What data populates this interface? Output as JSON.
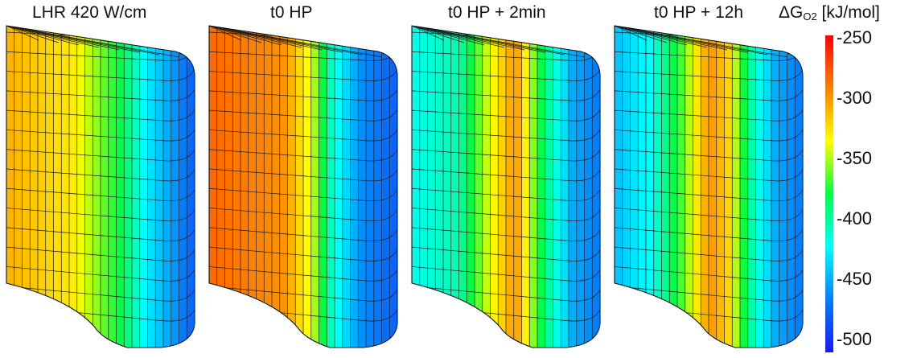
{
  "panels": [
    {
      "title": "LHR 420 W/cm",
      "profile": [
        [
          0,
          -310
        ],
        [
          0.35,
          -330
        ],
        [
          0.6,
          -380
        ],
        [
          0.75,
          -430
        ],
        [
          1,
          -480
        ]
      ]
    },
    {
      "title": "t0 HP",
      "profile": [
        [
          0,
          -285
        ],
        [
          0.4,
          -300
        ],
        [
          0.55,
          -345
        ],
        [
          0.65,
          -410
        ],
        [
          0.8,
          -460
        ],
        [
          1,
          -480
        ]
      ]
    },
    {
      "title": "t0 HP + 2min",
      "profile": [
        [
          0,
          -420
        ],
        [
          0.25,
          -405
        ],
        [
          0.4,
          -345
        ],
        [
          0.55,
          -300
        ],
        [
          0.7,
          -390
        ],
        [
          0.85,
          -450
        ],
        [
          1,
          -470
        ]
      ]
    },
    {
      "title": "t0 HP + 12h",
      "profile": [
        [
          0,
          -445
        ],
        [
          0.2,
          -420
        ],
        [
          0.35,
          -370
        ],
        [
          0.5,
          -300
        ],
        [
          0.6,
          -320
        ],
        [
          0.72,
          -400
        ],
        [
          0.85,
          -450
        ],
        [
          1,
          -470
        ]
      ]
    }
  ],
  "colorbar": {
    "title_main": "ΔG",
    "title_sub": "O2",
    "title_unit": " [kJ/mol]",
    "ticks": [
      "-250",
      "-300",
      "-350",
      "-400",
      "-450",
      "-500"
    ],
    "min": -510,
    "max": -250
  },
  "colors": {
    "stops": [
      "#1a1aff",
      "#0080ff",
      "#00ffff",
      "#00ff40",
      "#ffff00",
      "#ff8000",
      "#ff0000"
    ]
  }
}
